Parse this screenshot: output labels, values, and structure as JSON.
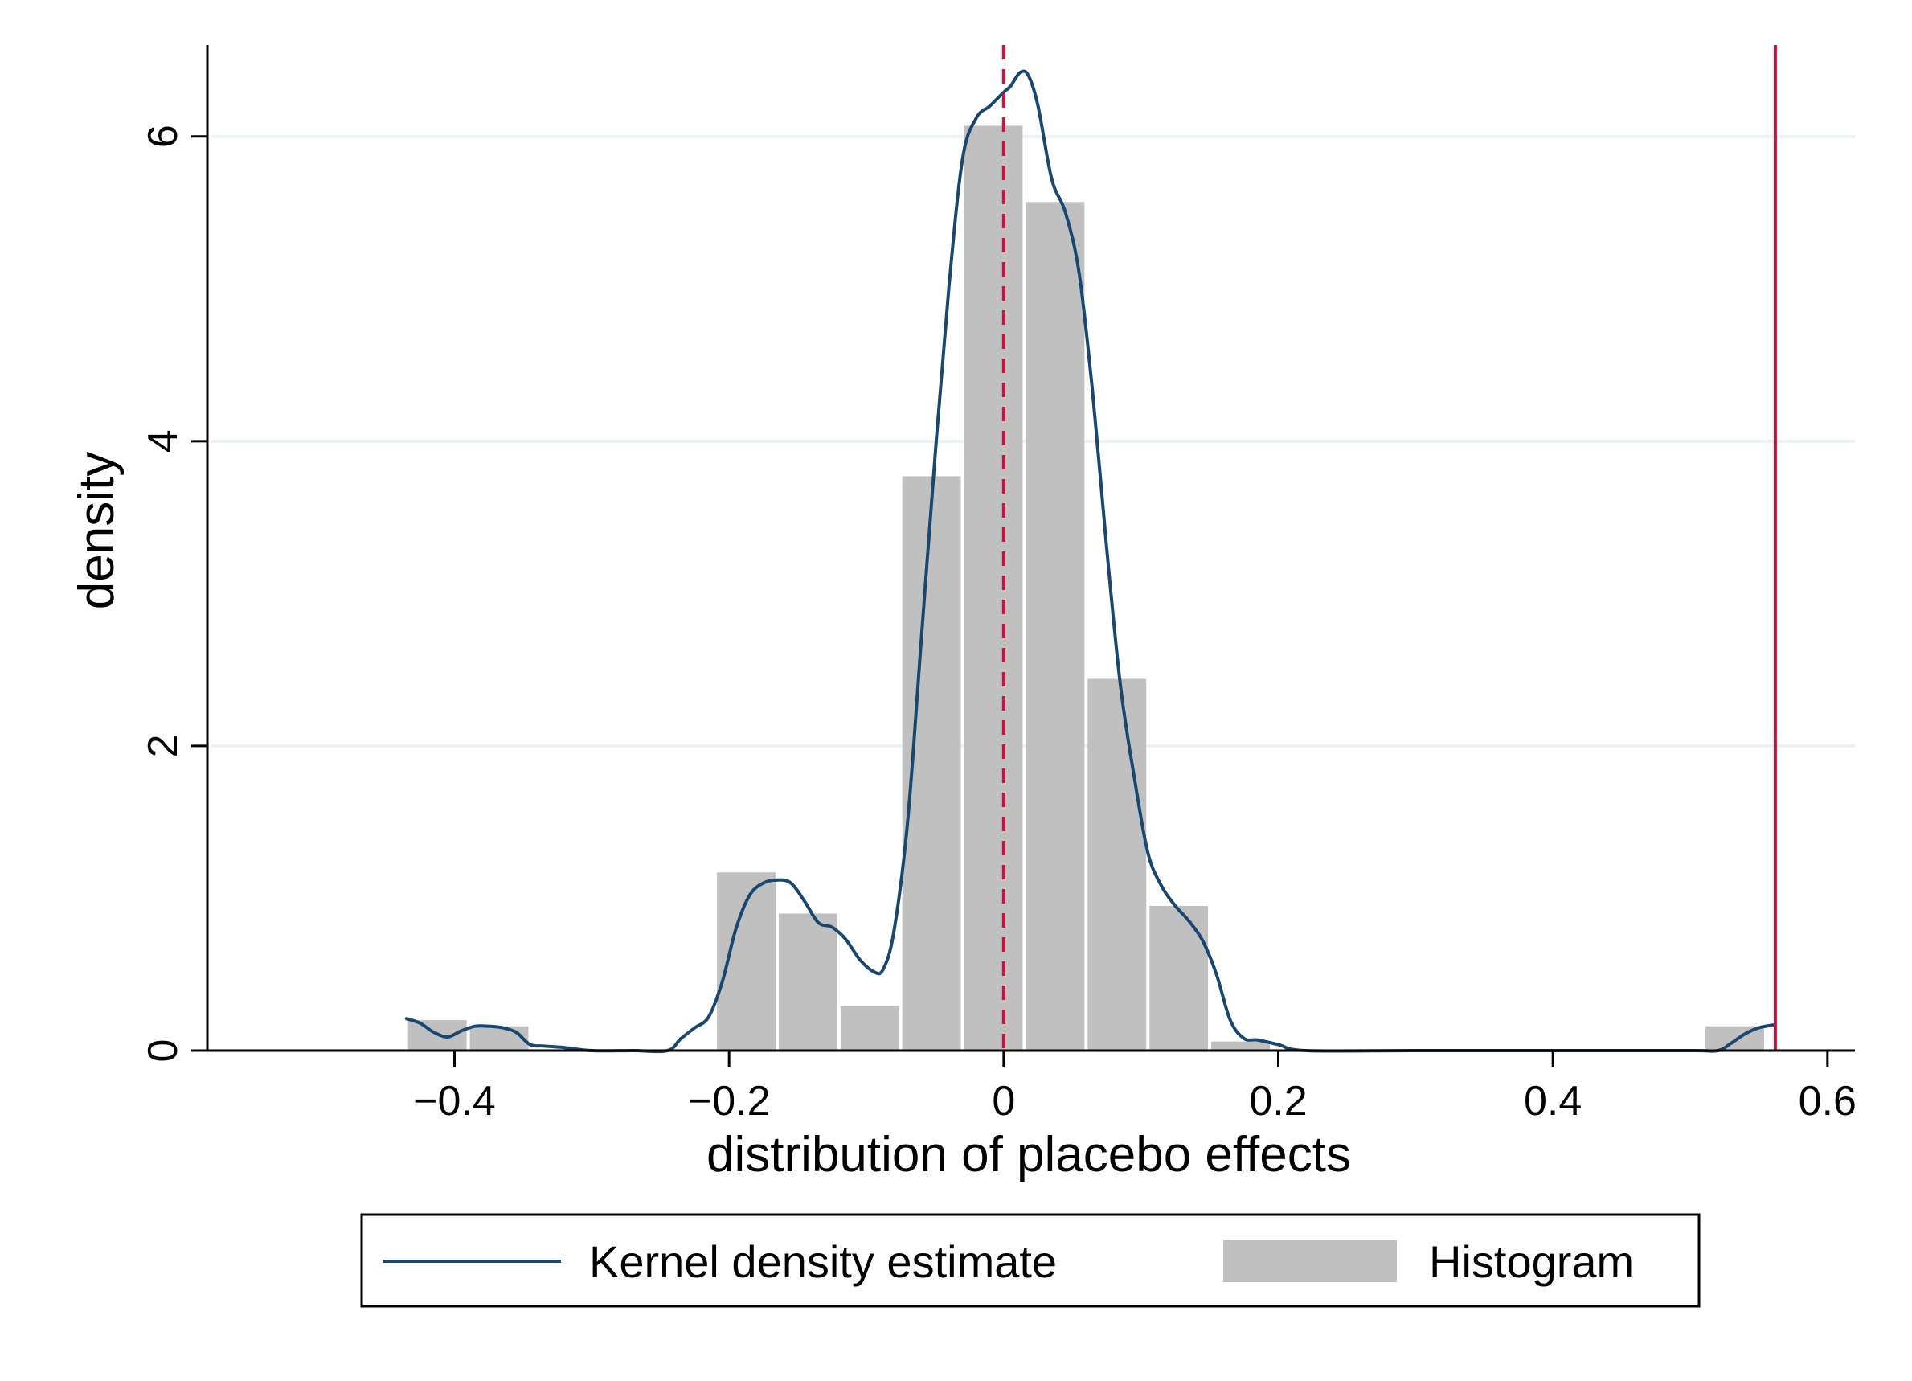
{
  "chart_data": {
    "type": "bar",
    "title": "",
    "xlabel": "distribution of placebo effects",
    "ylabel": "density",
    "xlim": [
      -0.58,
      0.62
    ],
    "ylim": [
      0,
      6.6
    ],
    "grid": true,
    "x_ticks": [
      {
        "value": -0.4,
        "label": "−0.4"
      },
      {
        "value": -0.2,
        "label": "−0.2"
      },
      {
        "value": 0,
        "label": "0"
      },
      {
        "value": 0.2,
        "label": "0.2"
      },
      {
        "value": 0.4,
        "label": "0.4"
      },
      {
        "value": 0.6,
        "label": "0.6"
      }
    ],
    "y_ticks": [
      {
        "value": 0,
        "label": "0"
      },
      {
        "value": 2,
        "label": "2"
      },
      {
        "value": 4,
        "label": "4"
      },
      {
        "value": 6,
        "label": "6"
      }
    ],
    "histogram": {
      "name": "Histogram",
      "color": "#c0c0c0",
      "bins": [
        {
          "x0": -0.435,
          "x1": -0.39,
          "density": 0.2
        },
        {
          "x0": -0.39,
          "x1": -0.345,
          "density": 0.16
        },
        {
          "x0": -0.345,
          "x1": -0.3,
          "density": 0.0
        },
        {
          "x0": -0.3,
          "x1": -0.255,
          "density": 0.0
        },
        {
          "x0": -0.255,
          "x1": -0.21,
          "density": 0.0
        },
        {
          "x0": -0.21,
          "x1": -0.165,
          "density": 1.17
        },
        {
          "x0": -0.165,
          "x1": -0.12,
          "density": 0.9
        },
        {
          "x0": -0.12,
          "x1": -0.075,
          "density": 0.29
        },
        {
          "x0": -0.075,
          "x1": -0.03,
          "density": 3.77
        },
        {
          "x0": -0.03,
          "x1": 0.015,
          "density": 6.07
        },
        {
          "x0": 0.015,
          "x1": 0.06,
          "density": 5.57
        },
        {
          "x0": 0.06,
          "x1": 0.105,
          "density": 2.44
        },
        {
          "x0": 0.105,
          "x1": 0.15,
          "density": 0.95
        },
        {
          "x0": 0.15,
          "x1": 0.195,
          "density": 0.06
        },
        {
          "x0": 0.195,
          "x1": 0.24,
          "density": 0.0
        },
        {
          "x0": 0.24,
          "x1": 0.285,
          "density": 0.0
        },
        {
          "x0": 0.285,
          "x1": 0.33,
          "density": 0.0
        },
        {
          "x0": 0.33,
          "x1": 0.375,
          "density": 0.0
        },
        {
          "x0": 0.375,
          "x1": 0.42,
          "density": 0.0
        },
        {
          "x0": 0.42,
          "x1": 0.465,
          "density": 0.0
        },
        {
          "x0": 0.465,
          "x1": 0.51,
          "density": 0.0
        },
        {
          "x0": 0.51,
          "x1": 0.555,
          "density": 0.16
        }
      ]
    },
    "kde": {
      "name": "Kernel density estimate",
      "color": "#1a476f",
      "points": [
        [
          -0.435,
          0.21
        ],
        [
          -0.425,
          0.18
        ],
        [
          -0.415,
          0.12
        ],
        [
          -0.405,
          0.09
        ],
        [
          -0.395,
          0.13
        ],
        [
          -0.385,
          0.16
        ],
        [
          -0.375,
          0.16
        ],
        [
          -0.365,
          0.15
        ],
        [
          -0.355,
          0.12
        ],
        [
          -0.345,
          0.04
        ],
        [
          -0.335,
          0.03
        ],
        [
          -0.32,
          0.02
        ],
        [
          -0.3,
          0.0
        ],
        [
          -0.27,
          0.0
        ],
        [
          -0.245,
          0.0
        ],
        [
          -0.235,
          0.08
        ],
        [
          -0.225,
          0.15
        ],
        [
          -0.215,
          0.22
        ],
        [
          -0.205,
          0.45
        ],
        [
          -0.195,
          0.8
        ],
        [
          -0.185,
          1.02
        ],
        [
          -0.175,
          1.1
        ],
        [
          -0.165,
          1.12
        ],
        [
          -0.155,
          1.1
        ],
        [
          -0.145,
          0.98
        ],
        [
          -0.135,
          0.84
        ],
        [
          -0.125,
          0.81
        ],
        [
          -0.115,
          0.73
        ],
        [
          -0.105,
          0.6
        ],
        [
          -0.095,
          0.52
        ],
        [
          -0.088,
          0.53
        ],
        [
          -0.08,
          0.78
        ],
        [
          -0.07,
          1.5
        ],
        [
          -0.06,
          2.7
        ],
        [
          -0.05,
          3.9
        ],
        [
          -0.04,
          5.0
        ],
        [
          -0.03,
          5.85
        ],
        [
          -0.02,
          6.12
        ],
        [
          -0.01,
          6.2
        ],
        [
          0.0,
          6.29
        ],
        [
          0.005,
          6.33
        ],
        [
          0.012,
          6.42
        ],
        [
          0.018,
          6.4
        ],
        [
          0.025,
          6.2
        ],
        [
          0.035,
          5.72
        ],
        [
          0.045,
          5.5
        ],
        [
          0.055,
          5.1
        ],
        [
          0.065,
          4.3
        ],
        [
          0.075,
          3.3
        ],
        [
          0.085,
          2.4
        ],
        [
          0.095,
          1.8
        ],
        [
          0.105,
          1.3
        ],
        [
          0.115,
          1.08
        ],
        [
          0.125,
          0.95
        ],
        [
          0.135,
          0.85
        ],
        [
          0.145,
          0.72
        ],
        [
          0.155,
          0.5
        ],
        [
          0.165,
          0.2
        ],
        [
          0.175,
          0.08
        ],
        [
          0.185,
          0.07
        ],
        [
          0.2,
          0.04
        ],
        [
          0.22,
          0.0
        ],
        [
          0.3,
          0.0
        ],
        [
          0.4,
          0.0
        ],
        [
          0.5,
          0.0
        ],
        [
          0.52,
          0.0
        ],
        [
          0.53,
          0.05
        ],
        [
          0.54,
          0.11
        ],
        [
          0.55,
          0.15
        ],
        [
          0.562,
          0.17
        ]
      ]
    },
    "reference_lines": [
      {
        "x": 0,
        "style": "dashed",
        "color": "#d0103a"
      },
      {
        "x": 0.562,
        "style": "solid",
        "color": "#d0103a"
      }
    ],
    "legend": {
      "placement": "bottom",
      "entries": [
        {
          "label": "Kernel density estimate",
          "kind": "line"
        },
        {
          "label": "Histogram",
          "kind": "box"
        }
      ]
    }
  }
}
